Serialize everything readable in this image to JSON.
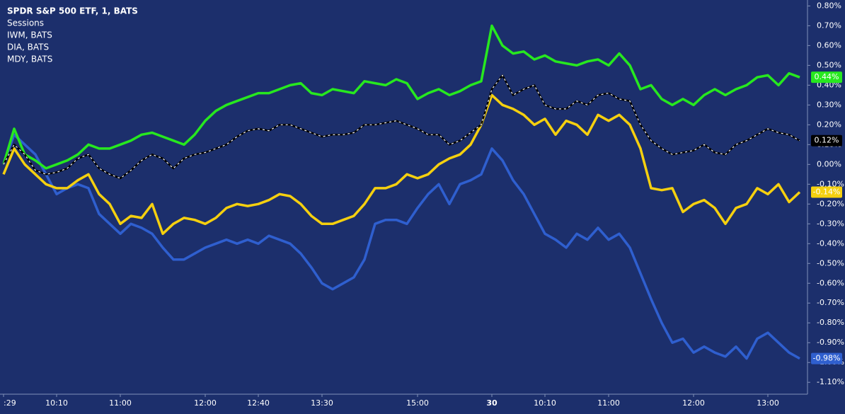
{
  "chart_data": {
    "type": "line",
    "title": "SPDR S&P 500 ETF, 1, BATS",
    "indicator": "Sessions",
    "background": "#1c2f6c",
    "ylim": [
      -1.16,
      0.83
    ],
    "yticks": [
      {
        "value": 0.8,
        "label": "0.80%"
      },
      {
        "value": 0.7,
        "label": "0.70%"
      },
      {
        "value": 0.6,
        "label": "0.60%"
      },
      {
        "value": 0.5,
        "label": "0.50%"
      },
      {
        "value": 0.4,
        "label": "0.40%"
      },
      {
        "value": 0.3,
        "label": "0.30%"
      },
      {
        "value": 0.2,
        "label": "0.20%"
      },
      {
        "value": 0.1,
        "label": "0.10%"
      },
      {
        "value": 0,
        "label": "0.00%"
      },
      {
        "value": -0.1,
        "label": "-0.10%"
      },
      {
        "value": -0.2,
        "label": "-0.20%"
      },
      {
        "value": -0.3,
        "label": "-0.30%"
      },
      {
        "value": -0.4,
        "label": "-0.40%"
      },
      {
        "value": -0.5,
        "label": "-0.50%"
      },
      {
        "value": -0.6,
        "label": "-0.60%"
      },
      {
        "value": -0.7,
        "label": "-0.70%"
      },
      {
        "value": -0.8,
        "label": "-0.80%"
      },
      {
        "value": -0.9,
        "label": "-0.90%"
      },
      {
        "value": -1.0,
        "label": "-1.00%"
      },
      {
        "value": -1.1,
        "label": "-1.10%"
      }
    ],
    "categories": [
      ":29",
      null,
      null,
      null,
      null,
      "10:10",
      null,
      null,
      null,
      null,
      null,
      "11:00",
      null,
      null,
      null,
      null,
      null,
      null,
      null,
      "12:00",
      null,
      null,
      null,
      null,
      "12:40",
      null,
      null,
      null,
      null,
      null,
      "13:30",
      null,
      null,
      null,
      null,
      null,
      null,
      null,
      null,
      "15:00",
      null,
      null,
      null,
      null,
      null,
      null,
      "30",
      null,
      null,
      null,
      null,
      "10:10",
      null,
      null,
      null,
      null,
      null,
      "11:00",
      null,
      null,
      null,
      null,
      null,
      null,
      null,
      "12:00",
      null,
      null,
      null,
      null,
      null,
      null,
      "13:00",
      null,
      null,
      null
    ],
    "series": [
      {
        "color": "#000000",
        "last_value_label": "0.12%",
        "values": [
          0.0,
          0.1,
          0.05,
          -0.03,
          -0.05,
          -0.04,
          -0.02,
          0.03,
          0.05,
          -0.02,
          -0.05,
          -0.07,
          -0.03,
          0.02,
          0.05,
          0.03,
          -0.02,
          0.03,
          0.05,
          0.06,
          0.08,
          0.1,
          0.14,
          0.17,
          0.18,
          0.17,
          0.2,
          0.2,
          0.18,
          0.16,
          0.14,
          0.15,
          0.15,
          0.16,
          0.2,
          0.2,
          0.21,
          0.22,
          0.2,
          0.18,
          0.15,
          0.15,
          0.1,
          0.12,
          0.16,
          0.2,
          0.38,
          0.45,
          0.35,
          0.38,
          0.4,
          0.3,
          0.28,
          0.28,
          0.32,
          0.3,
          0.35,
          0.36,
          0.33,
          0.32,
          0.2,
          0.12,
          0.08,
          0.05,
          0.06,
          0.07,
          0.1,
          0.06,
          0.05,
          0.1,
          0.12,
          0.15,
          0.18,
          0.16,
          0.15,
          0.12
        ]
      },
      {
        "name": "IWM, BATS",
        "color": "#2f5fcf",
        "last_value_label": "-0.98%",
        "values": [
          0.0,
          0.15,
          0.1,
          0.05,
          -0.05,
          -0.15,
          -0.12,
          -0.1,
          -0.12,
          -0.25,
          -0.3,
          -0.35,
          -0.3,
          -0.32,
          -0.35,
          -0.42,
          -0.48,
          -0.48,
          -0.45,
          -0.42,
          -0.4,
          -0.38,
          -0.4,
          -0.38,
          -0.4,
          -0.36,
          -0.38,
          -0.4,
          -0.45,
          -0.52,
          -0.6,
          -0.63,
          -0.6,
          -0.57,
          -0.48,
          -0.3,
          -0.28,
          -0.28,
          -0.3,
          -0.22,
          -0.15,
          -0.1,
          -0.2,
          -0.1,
          -0.08,
          -0.05,
          0.08,
          0.02,
          -0.08,
          -0.15,
          -0.25,
          -0.35,
          -0.38,
          -0.42,
          -0.35,
          -0.38,
          -0.32,
          -0.38,
          -0.35,
          -0.42,
          -0.55,
          -0.68,
          -0.8,
          -0.9,
          -0.88,
          -0.95,
          -0.92,
          -0.95,
          -0.97,
          -0.92,
          -0.98,
          -0.88,
          -0.85,
          -0.9,
          -0.95,
          -0.98
        ]
      },
      {
        "name": "DIA, BATS",
        "color": "#27e81f",
        "last_value_label": "0.44%",
        "values": [
          0,
          0.18,
          0.05,
          0.02,
          -0.02,
          0.0,
          0.02,
          0.05,
          0.1,
          0.08,
          0.08,
          0.1,
          0.12,
          0.15,
          0.16,
          0.14,
          0.12,
          0.1,
          0.15,
          0.22,
          0.27,
          0.3,
          0.32,
          0.34,
          0.36,
          0.36,
          0.38,
          0.4,
          0.41,
          0.36,
          0.35,
          0.38,
          0.37,
          0.36,
          0.42,
          0.41,
          0.4,
          0.43,
          0.41,
          0.33,
          0.36,
          0.38,
          0.35,
          0.37,
          0.4,
          0.42,
          0.7,
          0.6,
          0.56,
          0.57,
          0.53,
          0.55,
          0.52,
          0.51,
          0.5,
          0.52,
          0.53,
          0.5,
          0.56,
          0.5,
          0.38,
          0.4,
          0.33,
          0.3,
          0.33,
          0.3,
          0.35,
          0.38,
          0.35,
          0.38,
          0.4,
          0.44,
          0.45,
          0.4,
          0.46,
          0.44
        ]
      },
      {
        "name": "MDY, BATS",
        "color": "#f5d00f",
        "last_value_label": "-0.14%",
        "values": [
          -0.05,
          0.08,
          0.0,
          -0.05,
          -0.1,
          -0.12,
          -0.12,
          -0.08,
          -0.05,
          -0.15,
          -0.2,
          -0.3,
          -0.26,
          -0.27,
          -0.2,
          -0.35,
          -0.3,
          -0.27,
          -0.28,
          -0.3,
          -0.27,
          -0.22,
          -0.2,
          -0.21,
          -0.2,
          -0.18,
          -0.15,
          -0.16,
          -0.2,
          -0.26,
          -0.3,
          -0.3,
          -0.28,
          -0.26,
          -0.2,
          -0.12,
          -0.12,
          -0.1,
          -0.05,
          -0.07,
          -0.05,
          0.0,
          0.03,
          0.05,
          0.1,
          0.2,
          0.35,
          0.3,
          0.28,
          0.25,
          0.2,
          0.23,
          0.15,
          0.22,
          0.2,
          0.15,
          0.25,
          0.22,
          0.25,
          0.2,
          0.08,
          -0.12,
          -0.13,
          -0.12,
          -0.24,
          -0.2,
          -0.18,
          -0.22,
          -0.3,
          -0.22,
          -0.2,
          -0.12,
          -0.15,
          -0.1,
          -0.19,
          -0.14
        ]
      }
    ]
  }
}
